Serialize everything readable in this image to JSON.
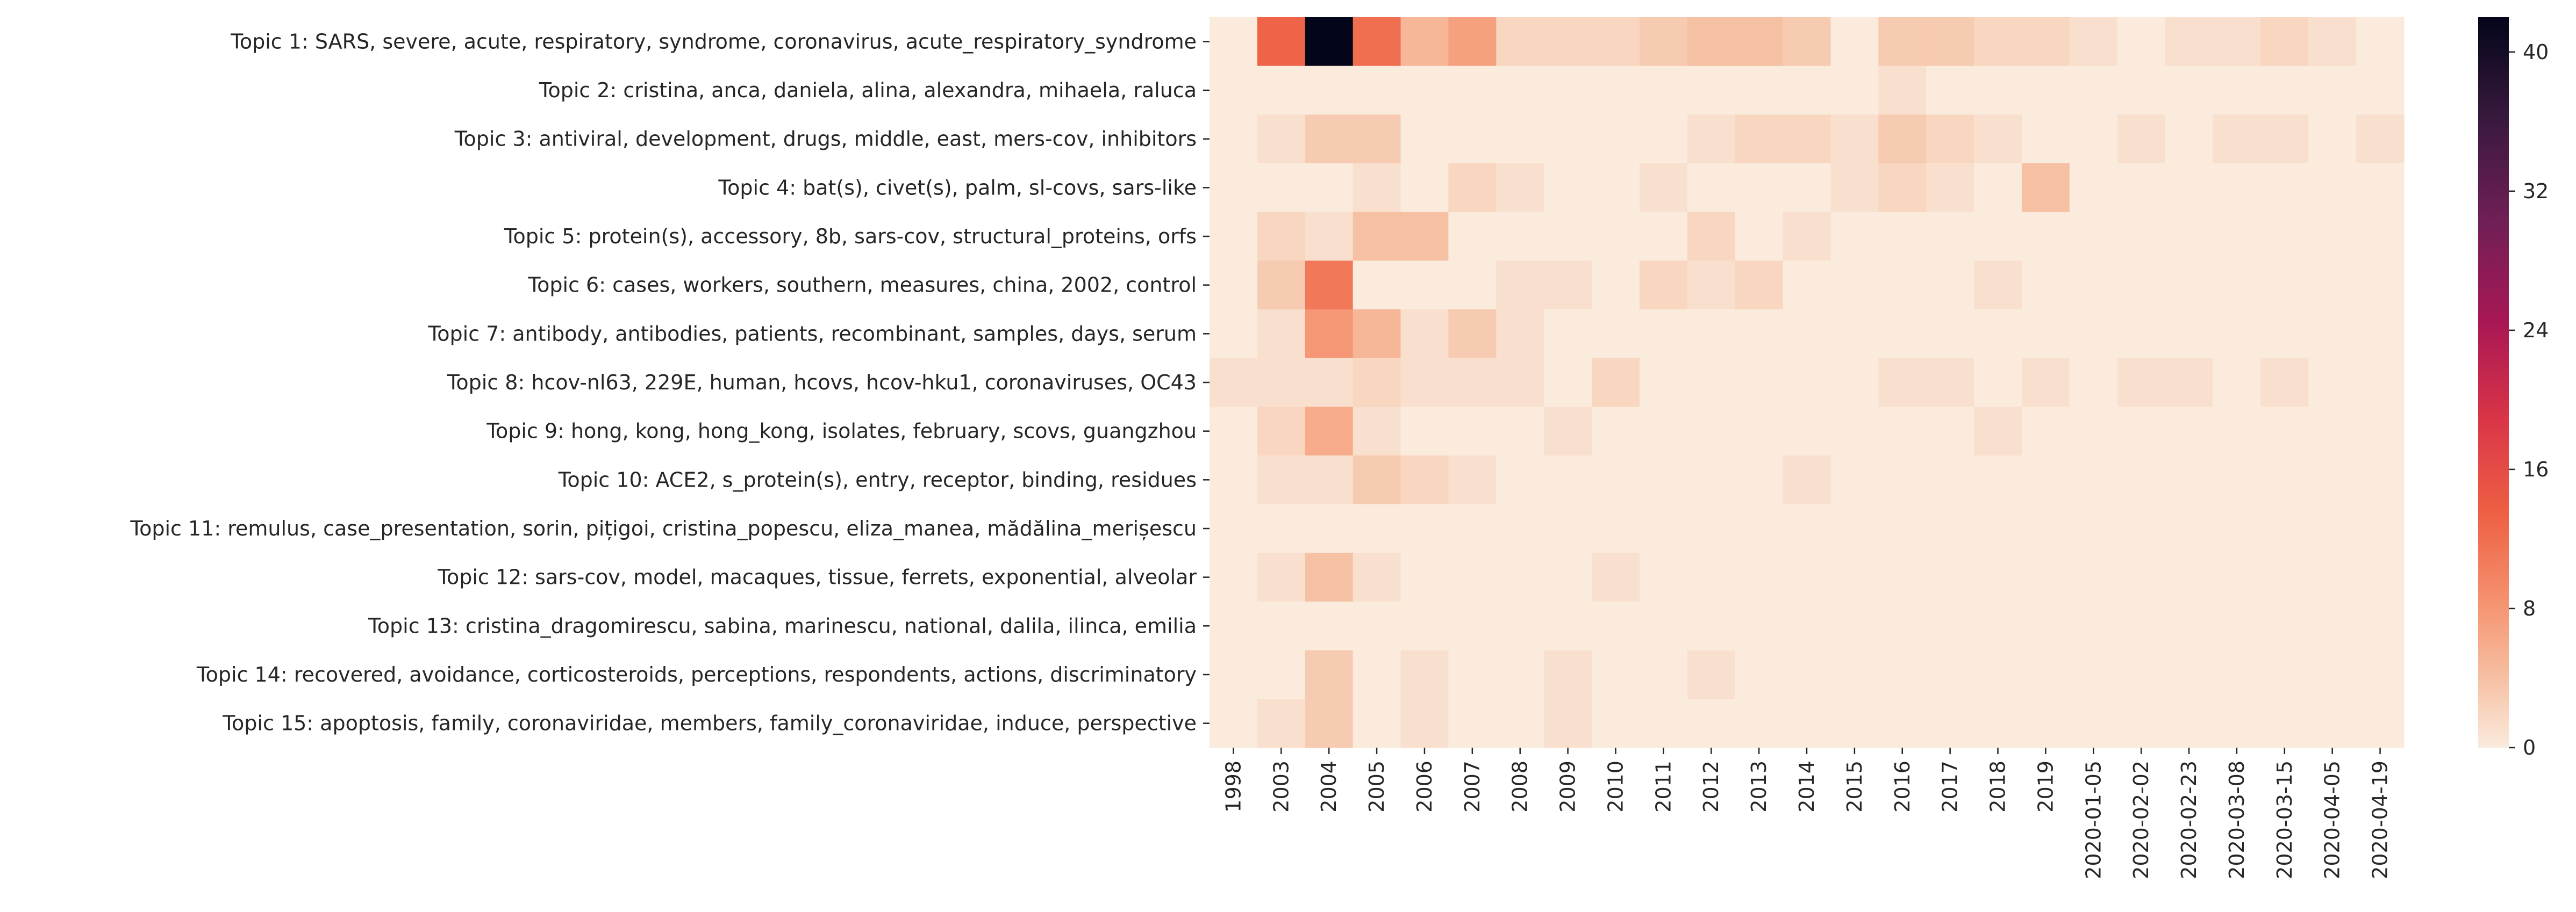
{
  "chart_data": {
    "type": "heatmap",
    "title": "",
    "xlabel": "",
    "ylabel": "",
    "x_categories": [
      "1998",
      "2003",
      "2004",
      "2005",
      "2006",
      "2007",
      "2008",
      "2009",
      "2010",
      "2011",
      "2012",
      "2013",
      "2014",
      "2015",
      "2016",
      "2017",
      "2018",
      "2019",
      "2020-01-05",
      "2020-02-02",
      "2020-02-23",
      "2020-03-08",
      "2020-03-15",
      "2020-04-05",
      "2020-04-19"
    ],
    "y_categories": [
      "Topic 1: SARS, severe, acute, respiratory, syndrome, coronavirus, acute_respiratory_syndrome",
      "Topic 2: cristina, anca, daniela, alina, alexandra, mihaela, raluca",
      "Topic 3: antiviral, development, drugs, middle, east, mers-cov, inhibitors",
      "Topic 4: bat(s), civet(s), palm, sl-covs, sars-like",
      "Topic 5: protein(s), accessory, 8b, sars-cov, structural_proteins, orfs",
      "Topic 6: cases, workers, southern, measures, china, 2002, control",
      "Topic 7: antibody, antibodies, patients, recombinant, samples, days, serum",
      "Topic 8: hcov-nl63, 229E, human, hcovs, hcov-hku1, coronaviruses, OC43",
      "Topic 9: hong, kong, hong_kong, isolates, february, scovs, guangzhou",
      "Topic 10: ACE2, s_protein(s), entry, receptor, binding, residues",
      "Topic 11: remulus, case_presentation, sorin, pițigoi, cristina_popescu, eliza_manea, mădălina_merișescu",
      "Topic 12: sars-cov, model, macaques, tissue, ferrets, exponential, alveolar",
      "Topic 13: cristina_dragomirescu, sabina, marinescu, national, dalila, ilinca, emilia",
      "Topic 14: recovered, avoidance, corticosteroids, perceptions, respondents, actions, discriminatory",
      "Topic 15: apoptosis, family, coronaviridae, members, family_coronaviridae, induce, perspective"
    ],
    "values": [
      [
        0,
        13,
        42,
        12,
        5,
        7,
        2,
        2,
        2,
        3,
        4,
        4,
        3,
        0,
        3,
        3,
        2,
        2,
        1,
        0,
        1,
        1,
        2,
        1,
        0
      ],
      [
        0,
        0,
        0,
        0,
        0,
        0,
        0,
        0,
        0,
        0,
        0,
        0,
        0,
        0,
        1,
        0,
        0,
        0,
        0,
        0,
        0,
        0,
        0,
        0,
        0
      ],
      [
        0,
        1,
        3,
        3,
        0,
        0,
        0,
        0,
        0,
        0,
        1,
        2,
        2,
        1,
        3,
        2,
        1,
        0,
        0,
        1,
        0,
        1,
        1,
        0,
        1
      ],
      [
        0,
        0,
        0,
        1,
        0,
        2,
        1,
        0,
        0,
        1,
        0,
        0,
        0,
        1,
        2,
        1,
        0,
        4,
        0,
        0,
        0,
        0,
        0,
        0,
        0
      ],
      [
        0,
        2,
        1,
        4,
        4,
        0,
        0,
        0,
        0,
        0,
        2,
        0,
        1,
        0,
        0,
        0,
        0,
        0,
        0,
        0,
        0,
        0,
        0,
        0,
        0
      ],
      [
        0,
        3,
        11,
        0,
        0,
        0,
        1,
        1,
        0,
        2,
        1,
        2,
        0,
        0,
        0,
        0,
        1,
        0,
        0,
        0,
        0,
        0,
        0,
        0,
        0
      ],
      [
        0,
        1,
        8,
        5,
        1,
        3,
        1,
        0,
        0,
        0,
        0,
        0,
        0,
        0,
        0,
        0,
        0,
        0,
        0,
        0,
        0,
        0,
        0,
        0,
        0
      ],
      [
        1,
        1,
        1,
        2,
        1,
        1,
        1,
        0,
        2,
        0,
        0,
        0,
        0,
        0,
        1,
        1,
        0,
        1,
        0,
        1,
        1,
        0,
        1,
        0,
        0
      ],
      [
        0,
        2,
        6,
        1,
        0,
        0,
        0,
        1,
        0,
        0,
        0,
        0,
        0,
        0,
        0,
        0,
        1,
        0,
        0,
        0,
        0,
        0,
        0,
        0,
        0
      ],
      [
        0,
        1,
        1,
        3,
        2,
        1,
        0,
        0,
        0,
        0,
        0,
        0,
        1,
        0,
        0,
        0,
        0,
        0,
        0,
        0,
        0,
        0,
        0,
        0,
        0
      ],
      [
        0,
        0,
        0,
        0,
        0,
        0,
        0,
        0,
        0,
        0,
        0,
        0,
        0,
        0,
        0,
        0,
        0,
        0,
        0,
        0,
        0,
        0,
        0,
        0,
        0
      ],
      [
        0,
        1,
        4,
        1,
        0,
        0,
        0,
        0,
        1,
        0,
        0,
        0,
        0,
        0,
        0,
        0,
        0,
        0,
        0,
        0,
        0,
        0,
        0,
        0,
        0
      ],
      [
        0,
        0,
        0,
        0,
        0,
        0,
        0,
        0,
        0,
        0,
        0,
        0,
        0,
        0,
        0,
        0,
        0,
        0,
        0,
        0,
        0,
        0,
        0,
        0,
        0
      ],
      [
        0,
        0,
        3,
        0,
        1,
        0,
        0,
        1,
        0,
        0,
        1,
        0,
        0,
        0,
        0,
        0,
        0,
        0,
        0,
        0,
        0,
        0,
        0,
        0,
        0
      ],
      [
        0,
        1,
        3,
        0,
        1,
        0,
        0,
        1,
        0,
        0,
        0,
        0,
        0,
        0,
        0,
        0,
        0,
        0,
        0,
        0,
        0,
        0,
        0,
        0,
        0
      ]
    ],
    "colorbar": {
      "colormap": "rocket_r",
      "min": 0,
      "max": 42,
      "ticks": [
        0,
        8,
        16,
        24,
        32,
        40
      ]
    },
    "grid": false,
    "legend": "colorbar-right"
  }
}
